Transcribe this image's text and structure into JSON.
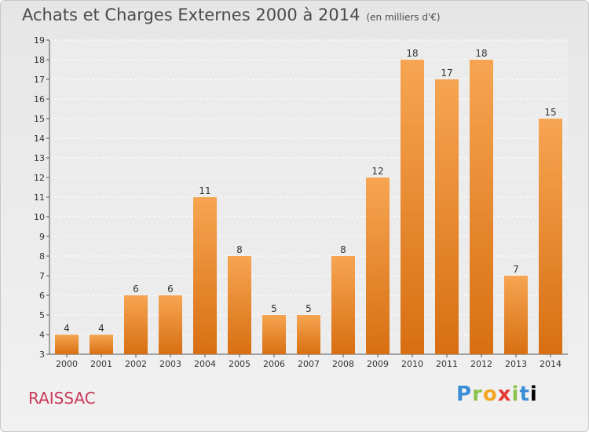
{
  "title": "Achats et Charges Externes 2000 à 2014",
  "subtitle": "(en milliers d'€)",
  "commune": "RAISSAC",
  "logo": {
    "letters": [
      "P",
      "r",
      "o",
      "x",
      "i",
      "t",
      "i"
    ]
  },
  "colors": {
    "bar": "#f08a2a",
    "bar_light": "#f6a552",
    "bar_dark": "#d86f12",
    "commune": "#c83a5a"
  },
  "chart_data": {
    "type": "bar",
    "categories": [
      "2000",
      "2001",
      "2002",
      "2003",
      "2004",
      "2005",
      "2006",
      "2007",
      "2008",
      "2009",
      "2010",
      "2011",
      "2012",
      "2013",
      "2014"
    ],
    "values": [
      4,
      4,
      6,
      6,
      11,
      8,
      5,
      5,
      8,
      12,
      18,
      17,
      18,
      7,
      15
    ],
    "ylim": [
      3,
      19
    ],
    "yticks": [
      3,
      4,
      5,
      6,
      7,
      8,
      9,
      10,
      11,
      12,
      13,
      14,
      15,
      16,
      17,
      18,
      19
    ],
    "grid": true
  }
}
